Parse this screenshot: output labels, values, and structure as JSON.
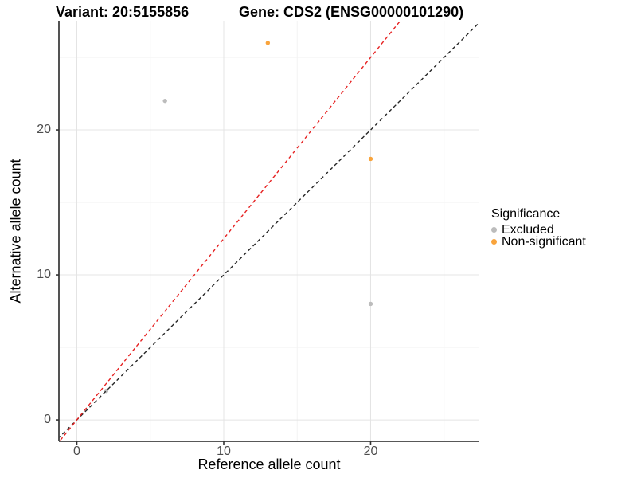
{
  "header": {
    "variant_title": "Variant: 20:5155856",
    "gene_title": "Gene: CDS2 (ENSG00000101290)"
  },
  "chart_data": {
    "type": "scatter",
    "xlabel": "Reference allele count",
    "ylabel": "Alternative allele count",
    "xlim": [
      -1.22,
      27.4
    ],
    "ylim": [
      -1.48,
      27.53
    ],
    "x_ticks": [
      0,
      10,
      20
    ],
    "y_ticks": [
      0,
      10,
      20
    ],
    "x_minor_ticks": [
      5,
      15,
      25
    ],
    "y_minor_ticks": [
      5,
      15,
      25
    ],
    "grid": true,
    "legend": {
      "title": "Significance",
      "position": "right"
    },
    "series": [
      {
        "name": "Excluded",
        "color": "#BCBCBC",
        "points": [
          [
            2,
            2
          ],
          [
            6,
            22
          ],
          [
            20,
            8
          ]
        ]
      },
      {
        "name": "Non-significant",
        "color": "#F9A43C",
        "points": [
          [
            13,
            26
          ],
          [
            20,
            18
          ]
        ]
      }
    ],
    "lines": [
      {
        "name": "identity-line",
        "slope": 1.0,
        "intercept": 0,
        "color": "#262626",
        "style": "dashed"
      },
      {
        "name": "allelic-ratio-line",
        "slope": 1.25,
        "intercept": 0,
        "color": "#E62222",
        "style": "dashed"
      }
    ]
  },
  "colors": {
    "grid_major": "#E4E4E4",
    "grid_minor": "#F2F2F2",
    "axis_line": "#404040",
    "tick_mark": "#333333",
    "tick_label": "#4d4d4d"
  }
}
